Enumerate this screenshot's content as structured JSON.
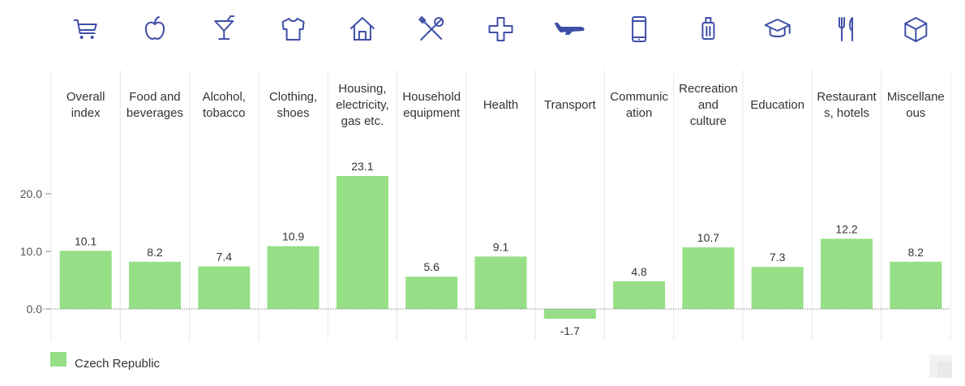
{
  "chart_data": {
    "type": "bar",
    "categories": [
      [
        "Overall",
        "index"
      ],
      [
        "Food and",
        "beverages"
      ],
      [
        "Alcohol,",
        "tobacco"
      ],
      [
        "Clothing,",
        "shoes"
      ],
      [
        "Housing,",
        "electricity,",
        "gas etc."
      ],
      [
        "Household",
        "equipment"
      ],
      [
        "Health"
      ],
      [
        "Transport"
      ],
      [
        "Communic",
        "ation"
      ],
      [
        "Recreation",
        "and",
        "culture"
      ],
      [
        "Education"
      ],
      [
        "Restaurant",
        "s, hotels"
      ],
      [
        "Miscellane",
        "ous"
      ]
    ],
    "icons": [
      "shopping-cart-icon",
      "apple-icon",
      "cocktail-glass-icon",
      "shirt-icon",
      "house-icon",
      "tools-icon",
      "health-cross-icon",
      "airplane-icon",
      "smartphone-icon",
      "suitcase-icon",
      "graduation-cap-icon",
      "cutlery-icon",
      "box-icon"
    ],
    "series": [
      {
        "name": "Czech Republic",
        "values": [
          10.1,
          8.2,
          7.4,
          10.9,
          23.1,
          5.6,
          9.1,
          -1.7,
          4.8,
          10.7,
          7.3,
          12.2,
          8.2
        ]
      }
    ],
    "value_labels": [
      "10.1",
      "8.2",
      "7.4",
      "10.9",
      "23.1",
      "5.6",
      "9.1",
      "-1.7",
      "4.8",
      "10.7",
      "7.3",
      "12.2",
      "8.2"
    ],
    "yticks": [
      0,
      10,
      20
    ],
    "ytick_labels": [
      "0.0",
      "10.0",
      "20.0"
    ],
    "ylim": [
      -5.5,
      40
    ],
    "legend": {
      "position": "bottom-left"
    },
    "colors": {
      "bar": "#96df86",
      "icon": "#3f4fa8",
      "grid": "#e8e8e8",
      "zero_line": "#888888"
    }
  }
}
